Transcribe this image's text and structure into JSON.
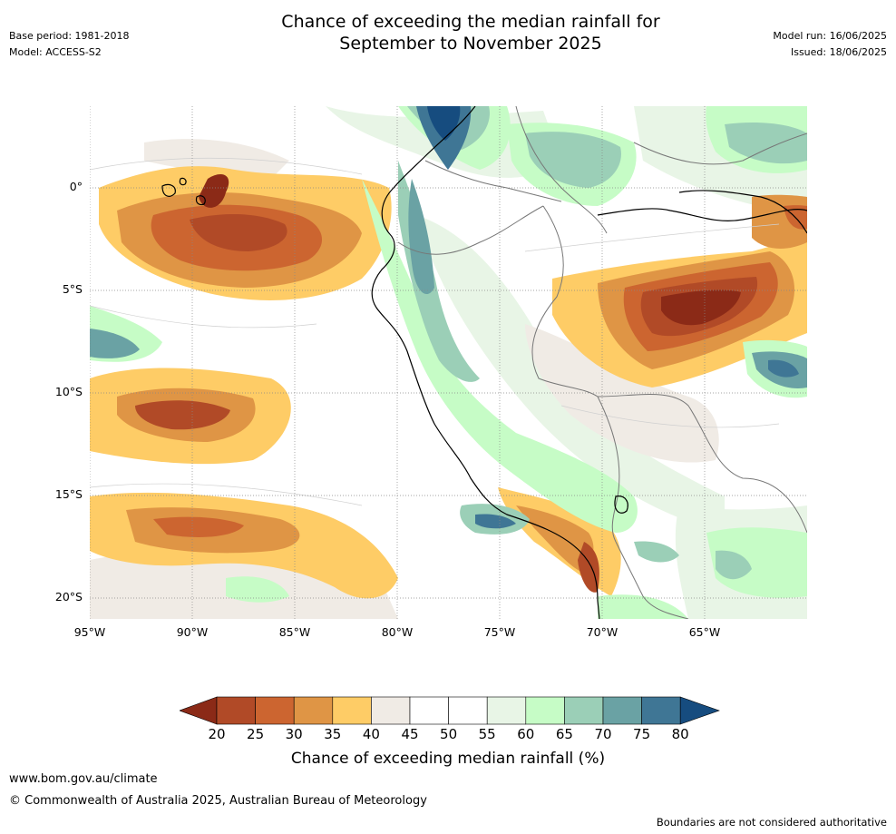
{
  "title_line1": "Chance of exceeding the median rainfall for",
  "title_line2": "September to November 2025",
  "meta_left": {
    "base_period": "Base period: 1981-2018",
    "model": "Model: ACCESS-S2"
  },
  "meta_right": {
    "model_run": "Model run: 16/06/2025",
    "issued": "Issued: 18/06/2025"
  },
  "lat_ticks": [
    "0°",
    "5°S",
    "10°S",
    "15°S",
    "20°S"
  ],
  "lon_ticks": [
    "95°W",
    "90°W",
    "85°W",
    "80°W",
    "75°W",
    "70°W",
    "65°W"
  ],
  "legend": {
    "title": "Chance of exceeding median rainfall (%)",
    "labels": [
      "20",
      "25",
      "30",
      "35",
      "40",
      "45",
      "50",
      "55",
      "60",
      "65",
      "70",
      "75",
      "80"
    ],
    "colors": [
      "#8b2a17",
      "#b14a27",
      "#cc6530",
      "#df9545",
      "#fecc66",
      "#f0ebe5",
      "#ffffff",
      "#ffffff",
      "#e8f5e6",
      "#c6fcc6",
      "#9bcfb7",
      "#6aa2a4",
      "#3f7695",
      "#164c7f"
    ]
  },
  "footer": {
    "url": "www.bom.gov.au/climate",
    "copyright": "© Commonwealth of Australia 2025, Australian Bureau of Meteorology",
    "note": "Boundaries are not considered authoritative"
  }
}
